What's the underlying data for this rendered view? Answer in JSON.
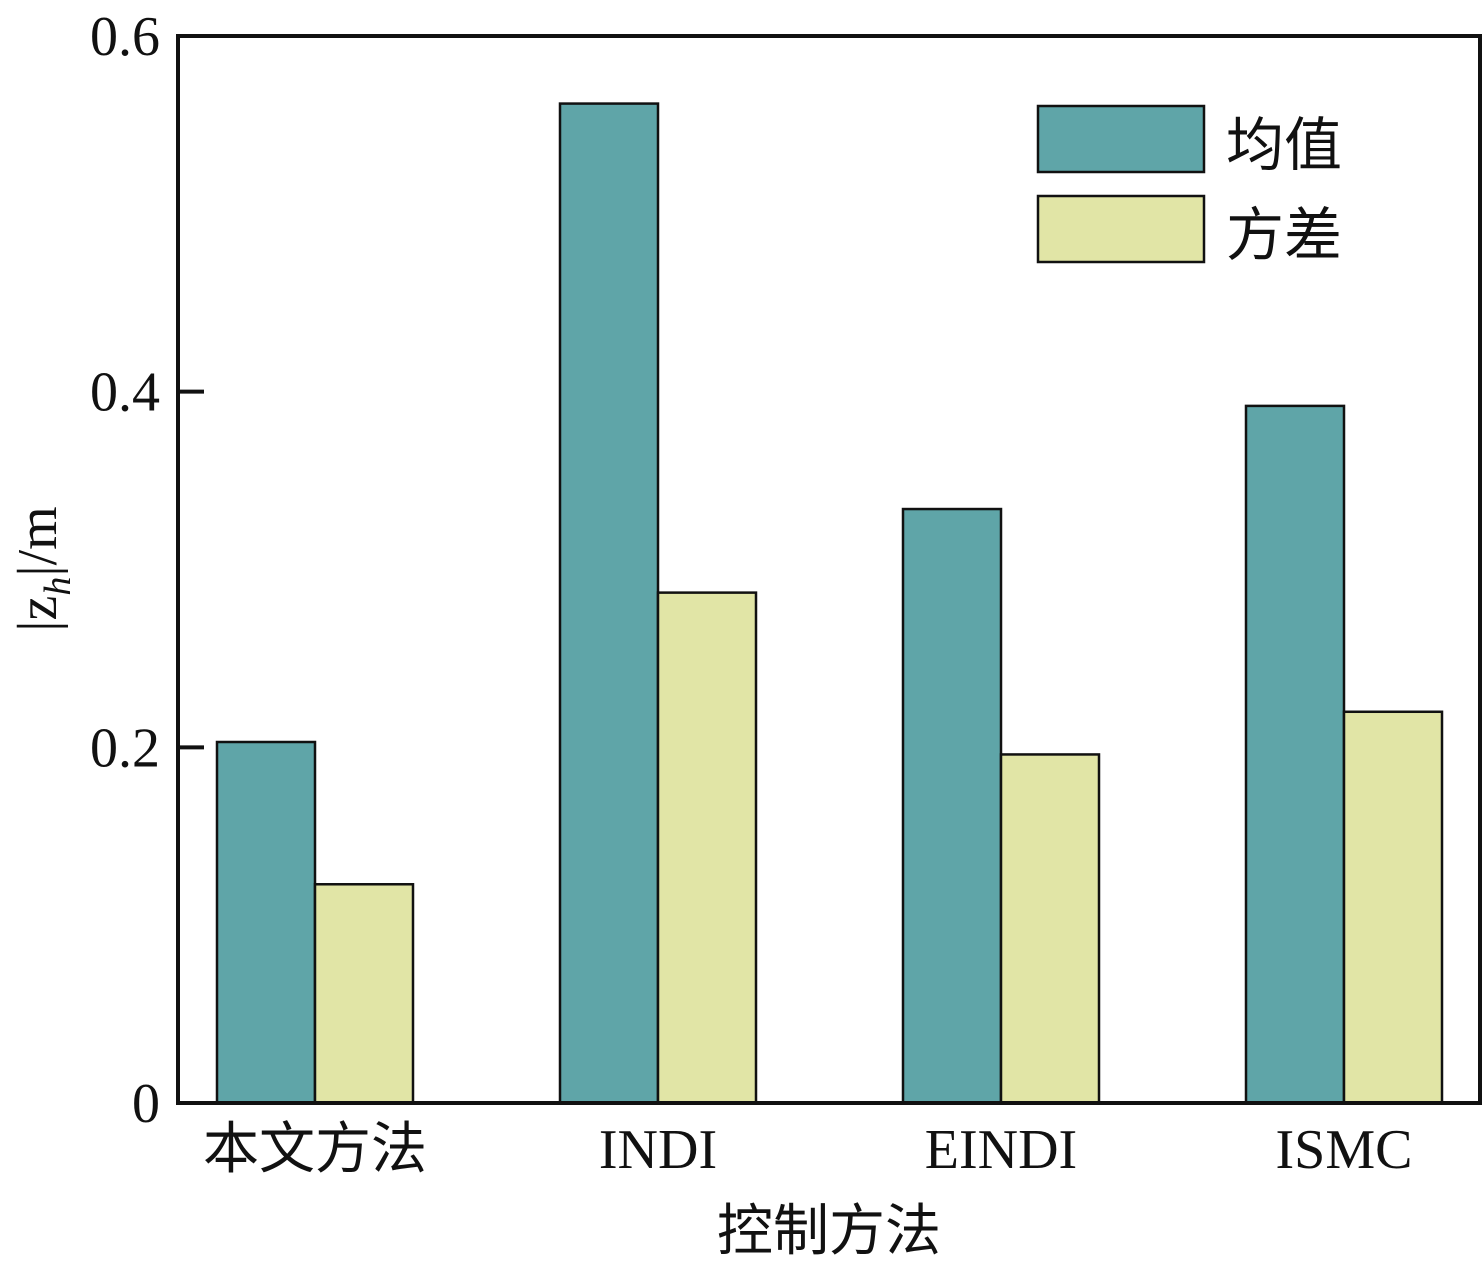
{
  "chart_data": {
    "type": "bar",
    "categories": [
      "本文方法",
      "INDI",
      "EINDI",
      "ISMC"
    ],
    "series": [
      {
        "name": "均值",
        "color": "#5fa5a8",
        "values": [
          0.203,
          0.562,
          0.334,
          0.392
        ]
      },
      {
        "name": "方差",
        "color": "#e1e5a6",
        "values": [
          0.123,
          0.287,
          0.196,
          0.22
        ]
      }
    ],
    "xlabel": "控制方法",
    "ylabel": "|z_h|/m",
    "ylabel_parts": {
      "open": "|z",
      "sub": "h",
      "close": "|/m"
    },
    "ylim": [
      0,
      0.6
    ],
    "yticks": [
      0,
      0.2,
      0.4,
      0.6
    ],
    "ytick_labels": [
      "0",
      "0.2",
      "0.4",
      "0.6"
    ],
    "grid": false,
    "legend_position": "top-right"
  }
}
